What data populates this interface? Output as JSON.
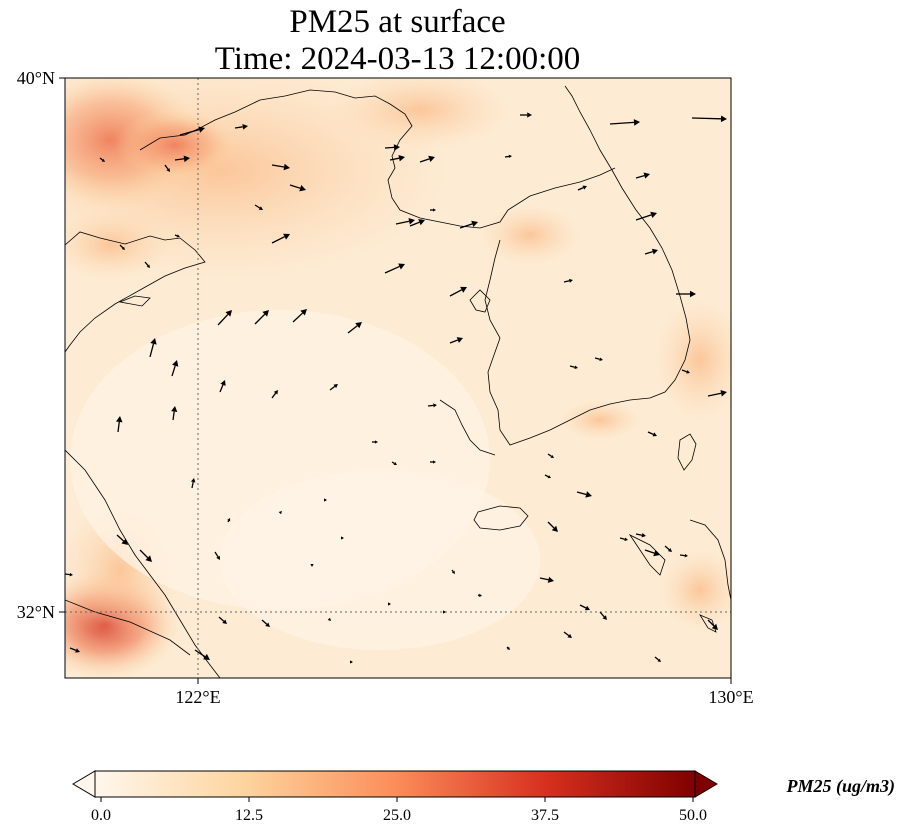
{
  "map": {
    "title_line1": "PM25 at surface",
    "title_line2": "Time: 2024-03-13 12:00:00",
    "lat_labels": [
      "40°N",
      "32°N"
    ],
    "lon_labels": [
      "122°E",
      "130°E"
    ],
    "lon_range": [
      120,
      130
    ],
    "lat_range": [
      31,
      40
    ],
    "gridlines": {
      "lon": 122,
      "lat": 32,
      "style": "dotted"
    },
    "colormap": "OrRd",
    "colors": {
      "low": "#fff7ec",
      "mid": "#fdd49e",
      "high": "#d7301f",
      "max": "#7f0000",
      "coast": "#000000"
    }
  },
  "colorbar": {
    "label": "PM25 (ug/m3)",
    "tick_labels": [
      "0.0",
      "12.5",
      "25.0",
      "37.5",
      "50.0"
    ],
    "range": [
      0,
      50
    ],
    "extend": "both"
  }
}
